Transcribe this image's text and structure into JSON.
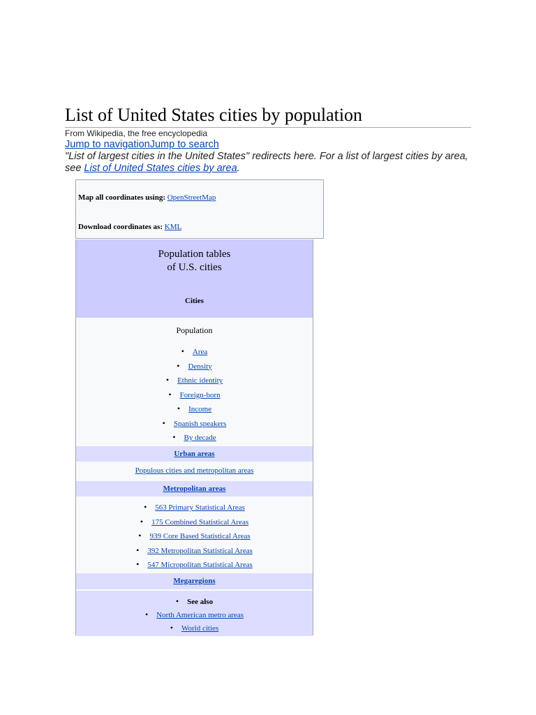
{
  "article": {
    "title": "List of United States cities by population",
    "tagline": "From Wikipedia, the free encyclopedia",
    "jump_navigation": "Jump to navigation",
    "jump_search": "Jump to search",
    "hatnote_text": "\"List of largest cities in the United States\" redirects here. For a list of largest cities by area, see ",
    "hatnote_link": "List of United States cities by area",
    "hatnote_end": "."
  },
  "coords_box": {
    "map_label": "Map all coordinates using:",
    "map_link": "OpenStreetMap",
    "download_label": "Download coordinates as:",
    "download_link": "KML"
  },
  "navbox": {
    "title_line1": "Population tables",
    "title_line2": "of U.S. cities",
    "cities_header": "Cities",
    "population_label": "Population",
    "population_items": [
      "Area",
      "Density",
      "Ethnic identity",
      "Foreign-born",
      "Income",
      "Spanish speakers",
      "By decade"
    ],
    "urban_header": "Urban areas",
    "urban_link": "Populous cities and metropolitan areas",
    "metro_header": "Metropolitan areas",
    "metro_items": [
      "563 Primary Statistical Areas",
      "175 Combined Statistical Areas",
      "939 Core Based Statistical Areas",
      "392 Metropolitan Statistical Areas",
      "547 Micropolitan Statistical Areas"
    ],
    "mega_header": "Megaregions",
    "see_also_label": "See also",
    "see_also_items": [
      "North American metro areas",
      "World cities"
    ]
  }
}
